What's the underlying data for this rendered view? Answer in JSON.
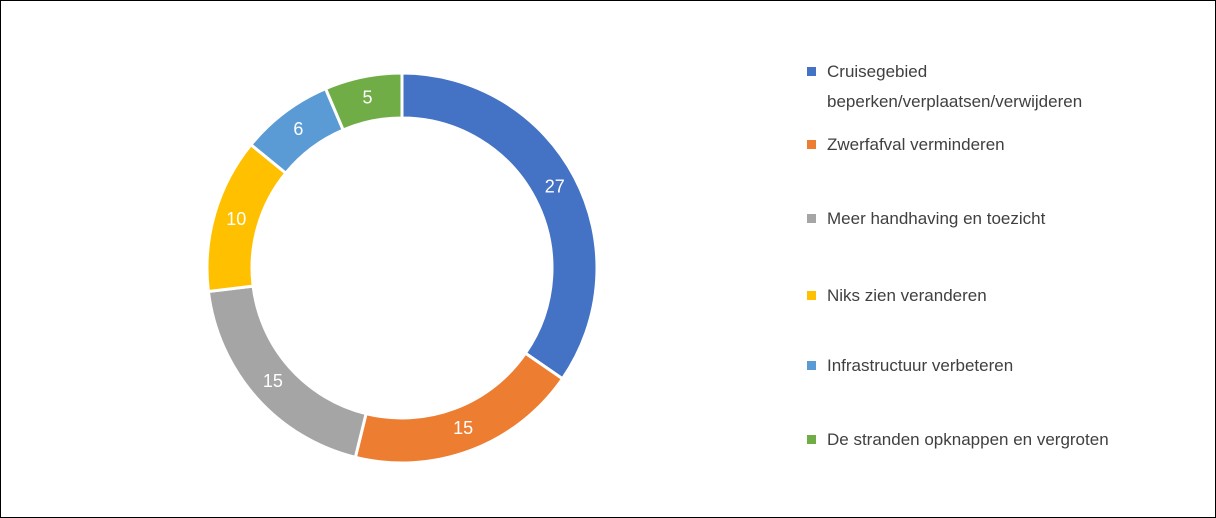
{
  "chart_data": {
    "type": "donut",
    "categories": [
      "Cruisegebied beperken/verplaatsen/verwijderen",
      "Zwerfafval verminderen",
      "Meer handhaving en toezicht",
      "Niks zien veranderen",
      "Infrastructuur verbeteren",
      "De stranden opknappen en vergroten"
    ],
    "values": [
      27,
      15,
      15,
      10,
      6,
      5
    ],
    "colors": [
      "#4472c4",
      "#ed7d31",
      "#a5a5a5",
      "#ffc000",
      "#5b9bd5",
      "#70ad47"
    ],
    "legend": "right"
  }
}
